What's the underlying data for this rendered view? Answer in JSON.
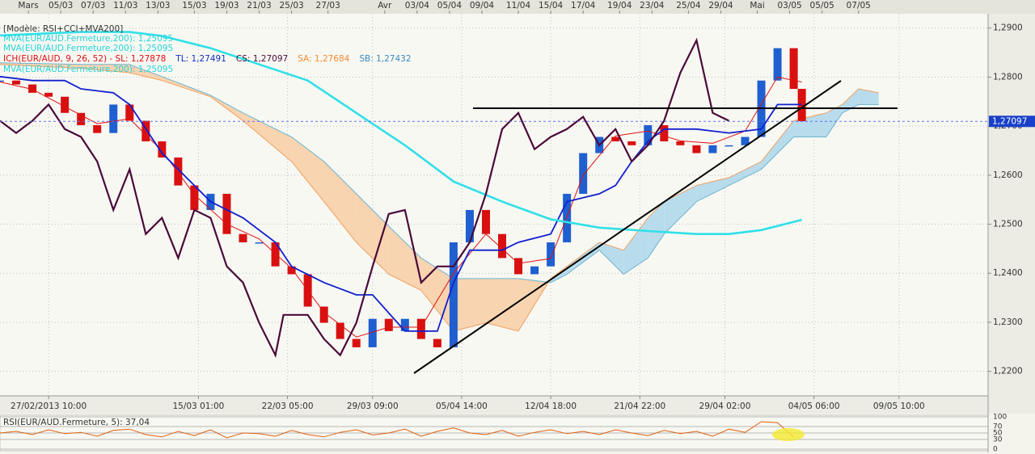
{
  "chart_data": [
    {
      "type": "candlestick",
      "legend": [
        {
          "text": "[Modèle: RSI+CCI+MVA200]",
          "color": "#333333"
        },
        {
          "text": "MVA(EUR/AUD.Fermeture,200): 1,25095",
          "color": "#22d4dc"
        },
        {
          "text": "MVA(EUR/AUD.Fermeture,200): 1,25095",
          "color": "#22d4dc"
        },
        {
          "text": "ICH(EUR/AUD, 9, 26, 52) -  SL: 1,27878",
          "color": "#d81010"
        },
        {
          "text": "TL: 1,27491",
          "color": "#1030c0"
        },
        {
          "text": "CS: 1,27097",
          "color": "#4a0a3a"
        },
        {
          "text": "SA: 1,27684",
          "color": "#f08a30"
        },
        {
          "text": "SB: 1,27432",
          "color": "#3a8ac0"
        },
        {
          "text": "MVA(EUR/AUD.Fermeture,200): 1,25095",
          "color": "#22d4dc"
        }
      ],
      "xlim": [
        0,
        244
      ],
      "ylim": [
        1.215,
        1.2921
      ],
      "grid": true,
      "yticks": [
        {
          "value": 1.22,
          "label": "1,2200"
        },
        {
          "value": 1.23,
          "label": "1,2300"
        },
        {
          "value": 1.24,
          "label": "1,2400"
        },
        {
          "value": 1.25,
          "label": "1,2500"
        },
        {
          "value": 1.26,
          "label": "1,2600"
        },
        {
          "value": 1.27,
          "label": "1,2700"
        },
        {
          "value": 1.28,
          "label": "1,2800"
        },
        {
          "value": 1.29,
          "label": "1,2900"
        }
      ],
      "xticks": [
        {
          "value": 12,
          "label": "27/02/2013 10:00"
        },
        {
          "value": 49,
          "label": "15/03 01:00"
        },
        {
          "value": 71,
          "label": "22/03 05:00"
        },
        {
          "value": 92,
          "label": "29/03 09:00"
        },
        {
          "value": 114,
          "label": "05/04 14:00"
        },
        {
          "value": 136,
          "label": "12/04 18:00"
        },
        {
          "value": 158,
          "label": "21/04 22:00"
        },
        {
          "value": 179,
          "label": "29/04 02:00"
        },
        {
          "value": 201,
          "label": "04/05 06:00"
        },
        {
          "value": 222,
          "label": "09/05 10:00"
        }
      ],
      "xticks_top": [
        {
          "value": 7,
          "label": "Mars"
        },
        {
          "value": 15,
          "label": "05/03"
        },
        {
          "value": 23,
          "label": "07/03"
        },
        {
          "value": 31,
          "label": "11/03"
        },
        {
          "value": 39,
          "label": "13/03"
        },
        {
          "value": 48,
          "label": "15/03"
        },
        {
          "value": 56,
          "label": "19/03"
        },
        {
          "value": 64,
          "label": "21/03"
        },
        {
          "value": 72,
          "label": "25/03"
        },
        {
          "value": 81,
          "label": "27/03"
        },
        {
          "value": 95,
          "label": "Avr"
        },
        {
          "value": 103,
          "label": "03/04"
        },
        {
          "value": 111,
          "label": "05/04"
        },
        {
          "value": 119,
          "label": "09/04"
        },
        {
          "value": 128,
          "label": "11/04"
        },
        {
          "value": 136,
          "label": "15/04"
        },
        {
          "value": 144,
          "label": "17/04"
        },
        {
          "value": 153,
          "label": "19/04"
        },
        {
          "value": 161,
          "label": "23/04"
        },
        {
          "value": 170,
          "label": "25/04"
        },
        {
          "value": 178,
          "label": "29/04"
        },
        {
          "value": 187,
          "label": "Mai"
        },
        {
          "value": 195,
          "label": "03/05"
        },
        {
          "value": 203,
          "label": "05/05"
        },
        {
          "value": 212,
          "label": "07/05"
        }
      ],
      "last_price": {
        "value": 1.27097,
        "label": "1,27097"
      },
      "price": {
        "up_color": "#1f5fd0",
        "down_color": "#d81010",
        "x": [
          0,
          4,
          8,
          12,
          16,
          20,
          24,
          28,
          32,
          36,
          40,
          44,
          48,
          52,
          56,
          60,
          64,
          68,
          72,
          76,
          80,
          84,
          88,
          92,
          96,
          100,
          104,
          108,
          112,
          116,
          120,
          124,
          128,
          132,
          136,
          140,
          144,
          148,
          152,
          156,
          160,
          164,
          168,
          172,
          176,
          180,
          184,
          188,
          192,
          196,
          198
        ],
        "values": [
          1.2793,
          1.2785,
          1.2768,
          1.276,
          1.2727,
          1.2702,
          1.2686,
          1.2744,
          1.2711,
          1.2669,
          1.2636,
          1.2579,
          1.2529,
          1.2562,
          1.248,
          1.2463,
          1.2463,
          1.2414,
          1.2398,
          1.2332,
          1.2299,
          1.2266,
          1.2249,
          1.2307,
          1.2282,
          1.2307,
          1.2266,
          1.2249,
          1.2463,
          1.2529,
          1.248,
          1.2431,
          1.2398,
          1.2414,
          1.2463,
          1.2562,
          1.2645,
          1.2678,
          1.2669,
          1.2661,
          1.2702,
          1.2669,
          1.2661,
          1.2645,
          1.2661,
          1.2661,
          1.2678,
          1.2793,
          1.2859,
          1.2776,
          1.271
        ]
      },
      "cloud": {
        "sa_color": "#f0a060",
        "sb_color": "#6ab4d4",
        "fill_up": "#b8dcec",
        "fill_down": "#f8d4b0",
        "x": [
          0,
          20,
          32,
          40,
          52,
          60,
          72,
          80,
          88,
          96,
          104,
          112,
          120,
          128,
          136,
          140,
          148,
          154,
          160,
          164,
          172,
          180,
          188,
          196,
          204,
          208,
          212,
          217
        ],
        "sa": [
          1.2826,
          1.2818,
          1.2809,
          1.2793,
          1.276,
          1.2711,
          1.2628,
          1.2546,
          1.2463,
          1.2398,
          1.2365,
          1.2282,
          1.2299,
          1.2282,
          1.2389,
          1.2414,
          1.2463,
          1.2447,
          1.2513,
          1.2546,
          1.2579,
          1.2595,
          1.2628,
          1.2711,
          1.2727,
          1.2744,
          1.2776,
          1.2768
        ],
        "sb": [
          1.2829,
          1.2826,
          1.2826,
          1.2801,
          1.2763,
          1.2727,
          1.2678,
          1.2628,
          1.2562,
          1.2496,
          1.2431,
          1.2389,
          1.2389,
          1.2389,
          1.2381,
          1.2398,
          1.2447,
          1.2398,
          1.2431,
          1.248,
          1.2546,
          1.2579,
          1.2612,
          1.2678,
          1.2678,
          1.2727,
          1.2744,
          1.2744
        ]
      },
      "lines": [
        {
          "color": "#e01010",
          "x": [
            0,
            8,
            16,
            24,
            32,
            40,
            48,
            56,
            64,
            72,
            80,
            88,
            96,
            104,
            112,
            120,
            128,
            136,
            144,
            152,
            160,
            168,
            176,
            184,
            192,
            198
          ],
          "values": [
            1.279,
            1.2775,
            1.274,
            1.2705,
            1.2715,
            1.265,
            1.256,
            1.25,
            1.247,
            1.241,
            1.232,
            1.227,
            1.229,
            1.229,
            1.24,
            1.248,
            1.242,
            1.243,
            1.26,
            1.268,
            1.269,
            1.267,
            1.2665,
            1.269,
            1.28,
            1.279
          ]
        },
        {
          "color": "#1020d0",
          "x": [
            0,
            8,
            16,
            20,
            28,
            32,
            40,
            48,
            52,
            60,
            68,
            72,
            80,
            88,
            92,
            100,
            108,
            112,
            116,
            124,
            128,
            136,
            140,
            148,
            152,
            156,
            160,
            164,
            172,
            180,
            188,
            192,
            198
          ],
          "values": [
            1.2801,
            1.2793,
            1.2793,
            1.2776,
            1.2768,
            1.2744,
            1.2645,
            1.2579,
            1.2546,
            1.2513,
            1.2463,
            1.2414,
            1.2381,
            1.2356,
            1.2356,
            1.2282,
            1.2282,
            1.2381,
            1.2447,
            1.2447,
            1.2463,
            1.248,
            1.2546,
            1.2562,
            1.2579,
            1.2628,
            1.2669,
            1.2694,
            1.2694,
            1.2686,
            1.2694,
            1.2744,
            1.2744
          ]
        },
        {
          "color": "#30e0e8",
          "x": [
            0,
            20,
            32,
            40,
            52,
            64,
            76,
            88,
            100,
            112,
            124,
            136,
            148,
            160,
            172,
            180,
            188,
            198
          ],
          "values": [
            1.2885,
            1.2892,
            1.2892,
            1.2884,
            1.2859,
            1.2826,
            1.2793,
            1.2727,
            1.2661,
            1.2587,
            1.2546,
            1.251,
            1.2493,
            1.2486,
            1.248,
            1.248,
            1.2488,
            1.2509
          ]
        },
        {
          "color": "#4a0a3a",
          "x": [
            0,
            4,
            8,
            12,
            16,
            20,
            24,
            28,
            32,
            36,
            40,
            44,
            48,
            52,
            56,
            60,
            64,
            68,
            70,
            76,
            80,
            84,
            88,
            92,
            96,
            100,
            104,
            108,
            112,
            116,
            120,
            124,
            128,
            132,
            136,
            140,
            144,
            148,
            152,
            156,
            160,
            164,
            168,
            172,
            176,
            180
          ],
          "values": [
            1.2711,
            1.2686,
            1.2711,
            1.2744,
            1.2694,
            1.2678,
            1.2628,
            1.2529,
            1.2612,
            1.248,
            1.2513,
            1.2431,
            1.2529,
            1.2513,
            1.2414,
            1.2381,
            1.2299,
            1.2233,
            1.2315,
            1.2315,
            1.2266,
            1.2233,
            1.2299,
            1.2414,
            1.2521,
            1.2529,
            1.2381,
            1.2414,
            1.2414,
            1.2463,
            1.2562,
            1.2694,
            1.2727,
            1.2653,
            1.2678,
            1.2694,
            1.2719,
            1.2661,
            1.2694,
            1.2628,
            1.2661,
            1.2711,
            1.2809,
            1.2875,
            1.2727,
            1.2711
          ]
        }
      ]
    },
    {
      "type": "line",
      "title": "RSI(EUR/AUD.Fermeture, 5): 37,04",
      "color": "#e06010",
      "ylim": [
        0,
        100
      ],
      "yticks": [
        0,
        30,
        50,
        70,
        100
      ],
      "x": [
        0,
        4,
        8,
        12,
        16,
        20,
        24,
        28,
        32,
        36,
        40,
        44,
        48,
        52,
        56,
        60,
        64,
        68,
        72,
        76,
        80,
        84,
        88,
        92,
        96,
        100,
        104,
        108,
        112,
        116,
        120,
        124,
        128,
        132,
        136,
        140,
        144,
        148,
        152,
        156,
        160,
        164,
        168,
        172,
        176,
        180,
        184,
        188,
        192,
        196
      ],
      "values": [
        50,
        55,
        45,
        60,
        48,
        52,
        40,
        58,
        62,
        45,
        38,
        55,
        42,
        60,
        35,
        50,
        48,
        40,
        58,
        45,
        38,
        52,
        60,
        44,
        50,
        62,
        40,
        55,
        66,
        50,
        45,
        58,
        40,
        52,
        60,
        48,
        55,
        45,
        60,
        50,
        42,
        58,
        48,
        55,
        40,
        62,
        52,
        85,
        82,
        37
      ]
    }
  ]
}
